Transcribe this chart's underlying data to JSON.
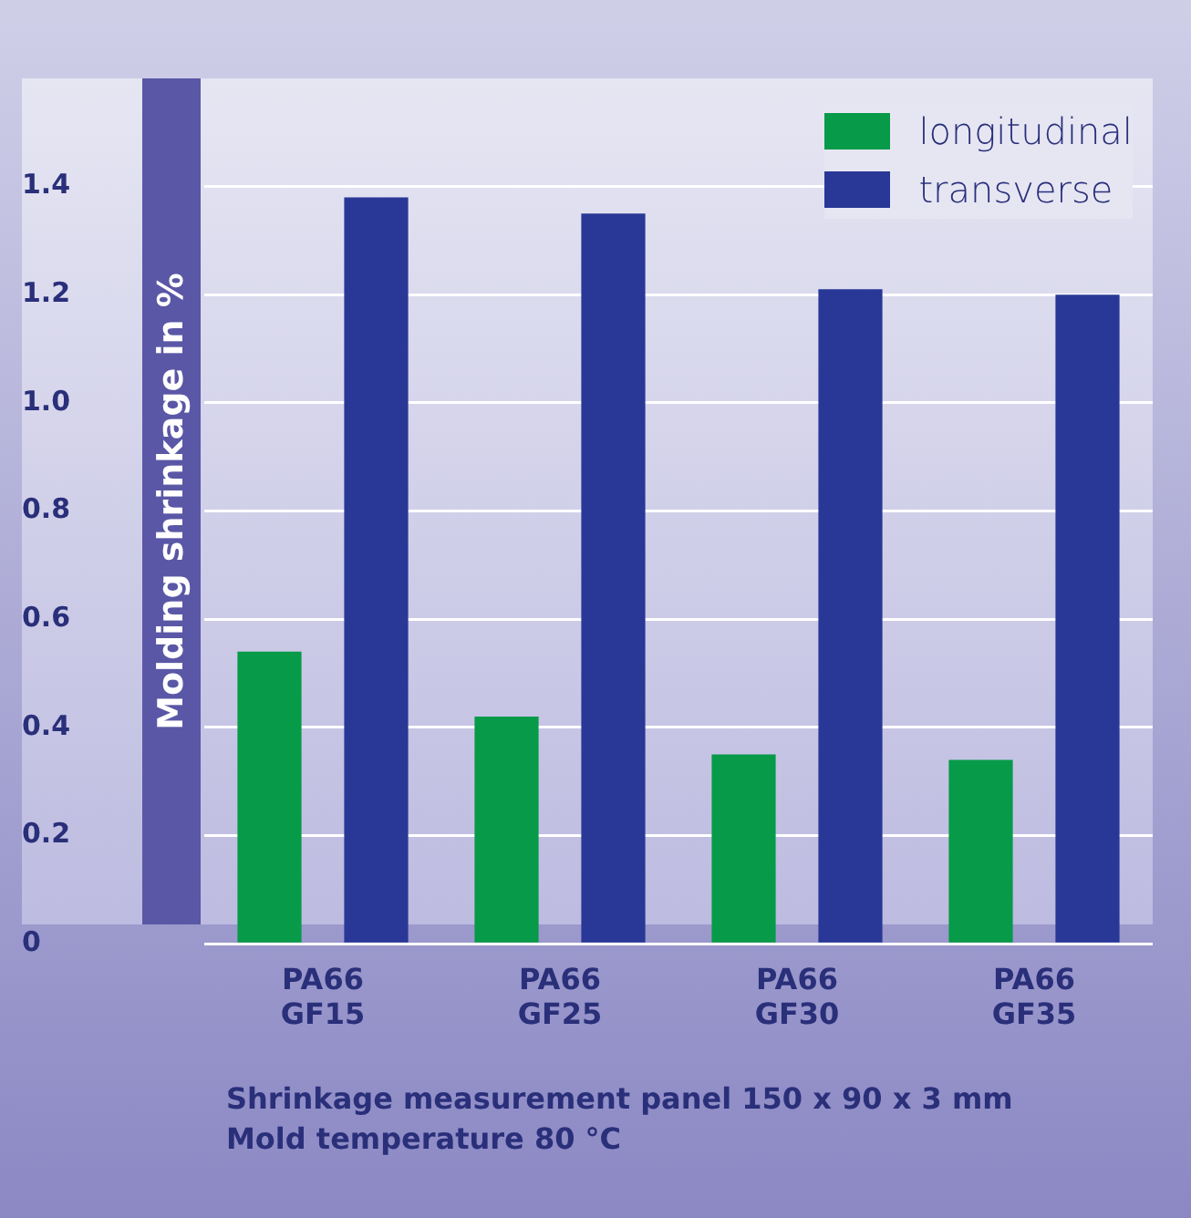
{
  "chart_data": {
    "type": "bar",
    "ylabel": "Molding shrinkage in %",
    "categories": [
      "PA66 GF15",
      "PA66 GF25",
      "PA66 GF30",
      "PA66 GF35"
    ],
    "series": [
      {
        "name": "longitudinal",
        "color": "#079a48",
        "values": [
          0.54,
          0.42,
          0.35,
          0.34
        ]
      },
      {
        "name": "transverse",
        "color": "#293896",
        "values": [
          1.38,
          1.35,
          1.21,
          1.2
        ]
      }
    ],
    "ylim": [
      0,
      1.6
    ],
    "yticks": [
      0,
      0.2,
      0.4,
      0.6,
      0.8,
      {
        "value": 1,
        "label": "1.0"
      },
      1.2,
      1.4
    ],
    "grid": "y",
    "legend": "top right",
    "annotations": [
      "Shrinkage measurement panel 150 x 90 x 3 mm",
      "Mold temperature 80 °C"
    ]
  }
}
